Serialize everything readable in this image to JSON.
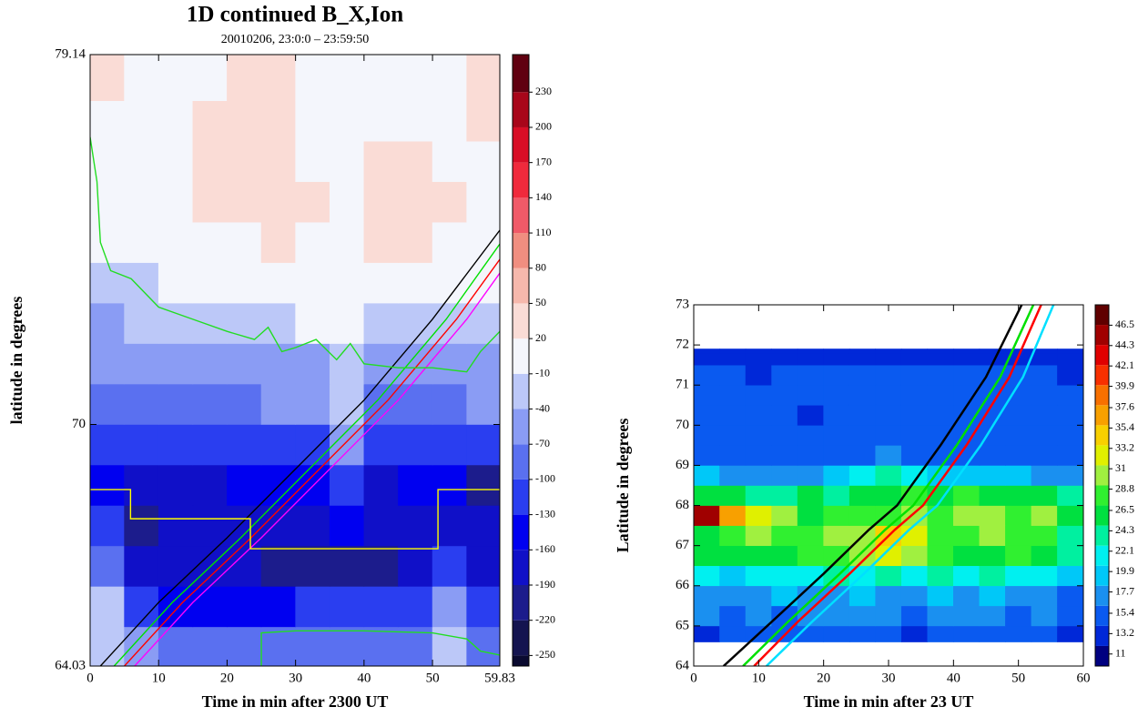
{
  "chart_data": [
    {
      "type": "contour",
      "title": "1D continued B_X,Ion",
      "subtitle": "20010206, 23:0:0 – 23:59:50",
      "xlabel": "Time in min after 2300 UT",
      "ylabel": "latitude in degrees",
      "xlim": [
        0,
        59.83
      ],
      "ylim": [
        64.03,
        79.14
      ],
      "xticks": [
        0,
        10,
        20,
        30,
        40,
        50,
        59.83
      ],
      "yticks": [
        64.03,
        70,
        79.14
      ],
      "x": [
        2.5,
        7.5,
        12.5,
        17.5,
        22.5,
        27.5,
        32.5,
        37.5,
        42.5,
        47.5,
        52.5,
        57.5
      ],
      "y": [
        64.5,
        65.5,
        66.5,
        67.5,
        68.5,
        69.5,
        70.5,
        71.5,
        72.5,
        73.5,
        74.5,
        75.5,
        76.5,
        77.5,
        78.5
      ],
      "z": [
        [
          -30,
          -60,
          -90,
          -100,
          -90,
          -80,
          -80,
          -80,
          -80,
          -80,
          -40,
          -100
        ],
        [
          -40,
          -120,
          -150,
          -160,
          -150,
          -140,
          -130,
          -130,
          -120,
          -120,
          -60,
          -130
        ],
        [
          -80,
          -170,
          -190,
          -190,
          -190,
          -200,
          -210,
          -210,
          -200,
          -190,
          -120,
          -180
        ],
        [
          -130,
          -200,
          -180,
          -170,
          -170,
          -180,
          -190,
          -140,
          -190,
          -180,
          -170,
          -180
        ],
        [
          -140,
          -190,
          -180,
          -170,
          -160,
          -160,
          -150,
          -120,
          -170,
          -160,
          -150,
          -200
        ],
        [
          -110,
          -130,
          -120,
          -110,
          -110,
          -105,
          -105,
          -70,
          -110,
          -110,
          -105,
          -110
        ],
        [
          -90,
          -90,
          -80,
          -80,
          -75,
          -70,
          -70,
          -30,
          -80,
          -80,
          -75,
          -70
        ],
        [
          -70,
          -60,
          -60,
          -55,
          -50,
          -45,
          -45,
          -20,
          -50,
          -55,
          -50,
          -45
        ],
        [
          -50,
          -40,
          -30,
          -25,
          -20,
          -15,
          -10,
          -5,
          -15,
          -20,
          -20,
          -15
        ],
        [
          -30,
          -20,
          -10,
          -5,
          0,
          5,
          5,
          0,
          5,
          10,
          -5,
          0
        ],
        [
          -10,
          -5,
          0,
          10,
          15,
          20,
          15,
          10,
          25,
          25,
          15,
          15
        ],
        [
          0,
          0,
          0,
          20,
          25,
          30,
          20,
          10,
          25,
          30,
          20,
          10
        ],
        [
          5,
          0,
          5,
          25,
          30,
          25,
          15,
          5,
          20,
          25,
          10,
          15
        ],
        [
          10,
          5,
          10,
          25,
          30,
          20,
          10,
          0,
          5,
          15,
          10,
          20
        ],
        [
          25,
          15,
          10,
          15,
          25,
          20,
          10,
          5,
          5,
          10,
          15,
          25
        ]
      ],
      "colorbar": {
        "lim": [
          -259,
          262
        ],
        "ticks": [
          -250,
          -220,
          -190,
          -160,
          -130,
          -100,
          -70,
          -40,
          -10,
          20,
          50,
          80,
          110,
          140,
          170,
          200,
          230
        ],
        "colors": [
          "#0a0a30",
          "#141450",
          "#1c1c8c",
          "#1010c8",
          "#0000f0",
          "#2a3ef0",
          "#5a70f0",
          "#8a9cf4",
          "#bcc8f8",
          "#f4f6fc",
          "#fadcd6",
          "#f6b8ac",
          "#f08e80",
          "#f05a68",
          "#f02a3c",
          "#d80e26",
          "#a8061a",
          "#600010"
        ]
      },
      "lines": [
        {
          "color": "#000000",
          "x": [
            1.5,
            10,
            20,
            30,
            40,
            50,
            59.83
          ],
          "y": [
            64.03,
            65.6,
            67.2,
            68.9,
            70.6,
            72.6,
            74.8
          ]
        },
        {
          "color": "#00e000",
          "x": [
            3.5,
            12,
            22,
            32,
            42,
            52,
            59.83
          ],
          "y": [
            64.03,
            65.6,
            67.2,
            68.9,
            70.6,
            72.6,
            74.46
          ]
        },
        {
          "color": "#ff0000",
          "x": [
            5,
            13.5,
            23.5,
            33.5,
            43.5,
            53.5,
            59.83
          ],
          "y": [
            64.03,
            65.6,
            67.2,
            68.9,
            70.6,
            72.6,
            74.08
          ]
        },
        {
          "color": "#ff00ff",
          "x": [
            6.5,
            15,
            25,
            35,
            45,
            55,
            59.83
          ],
          "y": [
            64.03,
            65.6,
            67.2,
            68.9,
            70.6,
            72.6,
            73.74
          ]
        },
        {
          "color": "#ffff00",
          "x": [
            0,
            5.9,
            5.9,
            23.4,
            23.4,
            50.8,
            50.8,
            59.83
          ],
          "y": [
            68.39,
            68.39,
            67.67,
            67.67,
            66.93,
            66.93,
            68.39,
            68.39
          ]
        },
        {
          "color": "#22dd22",
          "x": [
            0,
            1,
            1.5,
            3,
            6,
            10,
            15,
            20,
            24,
            26,
            28,
            30,
            33,
            36,
            38,
            40,
            45,
            50,
            55,
            57,
            59.83
          ],
          "y": [
            77.1,
            76,
            74.5,
            73.8,
            73.6,
            72.9,
            72.6,
            72.3,
            72.1,
            72.4,
            71.8,
            71.9,
            72.1,
            71.6,
            72,
            71.5,
            71.4,
            71.4,
            71.3,
            71.8,
            72.3
          ]
        },
        {
          "color": "#22dd22",
          "x": [
            25,
            25,
            30,
            40,
            50,
            55,
            57,
            59.83
          ],
          "y": [
            64.03,
            64.85,
            64.9,
            64.9,
            64.85,
            64.7,
            64.4,
            64.3
          ]
        }
      ]
    },
    {
      "type": "heatmap",
      "xlabel": "Time in min after 23 UT",
      "ylabel": "Latitude in degrees",
      "xlim": [
        0,
        60
      ],
      "ylim": [
        64,
        73
      ],
      "xticks": [
        0,
        10,
        20,
        30,
        40,
        50,
        60
      ],
      "yticks": [
        64,
        65,
        66,
        67,
        68,
        69,
        70,
        71,
        72,
        73
      ],
      "x_edges": [
        0,
        4,
        8,
        12,
        16,
        20,
        24,
        28,
        32,
        36,
        40,
        44,
        48,
        52,
        56,
        60
      ],
      "y_edges": [
        64.6,
        65,
        65.5,
        66,
        66.5,
        67,
        67.5,
        68,
        68.5,
        69,
        69.5,
        70,
        70.5,
        71,
        71.5,
        71.8,
        71.9
      ],
      "z": [
        [
          14,
          15,
          15,
          16,
          15,
          15,
          16,
          15,
          14,
          15,
          16,
          15,
          15,
          16,
          14
        ],
        [
          17,
          16,
          17,
          16,
          17,
          18,
          17,
          17,
          16,
          17,
          18,
          17,
          16,
          17,
          15
        ],
        [
          18,
          17,
          18,
          19,
          18,
          17,
          19,
          18,
          18,
          19,
          18,
          19,
          18,
          17,
          16
        ],
        [
          21,
          20,
          22,
          21,
          22,
          23,
          22,
          23,
          22,
          24,
          22,
          23,
          22,
          21,
          19
        ],
        [
          25,
          26,
          27,
          26,
          28,
          29,
          30,
          33,
          31,
          28,
          27,
          26,
          28,
          27,
          23
        ],
        [
          27,
          28,
          30,
          29,
          28,
          30,
          31,
          34,
          32,
          29,
          28,
          30,
          29,
          28,
          24
        ],
        [
          45,
          37,
          33,
          31,
          27,
          28,
          28,
          29,
          30,
          29,
          31,
          30,
          29,
          30,
          25
        ],
        [
          26,
          25,
          24,
          24,
          25,
          24,
          25,
          27,
          28,
          27,
          28,
          27,
          26,
          27,
          23
        ],
        [
          19,
          18,
          18,
          18,
          18,
          19,
          21,
          24,
          22,
          20,
          19,
          20,
          19,
          18,
          17
        ],
        [
          16,
          15,
          15,
          15,
          15,
          15,
          16,
          17,
          16,
          16,
          15,
          16,
          15,
          15,
          15
        ],
        [
          15,
          15,
          15,
          15,
          15,
          15,
          15,
          15,
          15,
          15,
          15,
          15,
          15,
          15,
          15
        ],
        [
          15,
          15,
          15,
          15,
          13,
          15,
          15,
          15,
          15,
          15,
          15,
          15,
          15,
          15,
          15
        ],
        [
          15,
          15,
          15,
          15,
          15,
          15,
          15,
          15,
          15,
          15,
          15,
          15,
          15,
          15,
          15
        ],
        [
          15,
          15,
          13,
          15,
          15,
          15,
          15,
          15,
          15,
          15,
          15,
          15,
          15,
          15,
          14
        ],
        [
          14,
          14,
          13,
          14,
          14,
          14,
          14,
          14,
          14,
          14,
          14,
          14,
          14,
          14,
          13
        ],
        [
          12,
          12,
          12,
          12,
          12,
          12,
          12,
          12,
          12,
          12,
          12,
          12,
          12,
          12,
          12
        ]
      ],
      "colorbar": {
        "lim": [
          9.7,
          48.7
        ],
        "ticks": [
          11,
          13.2,
          15.4,
          17.7,
          19.9,
          22.1,
          24.3,
          26.5,
          28.8,
          31,
          33.2,
          35.4,
          37.6,
          39.9,
          42.1,
          44.3,
          46.5
        ],
        "colors": [
          "#000080",
          "#0028d8",
          "#0a5af0",
          "#1a90f0",
          "#00c8f8",
          "#00f0f0",
          "#00f0a0",
          "#00e040",
          "#30f030",
          "#a0f040",
          "#e0f000",
          "#f8d000",
          "#f8a000",
          "#f87000",
          "#f83000",
          "#e00000",
          "#a00000",
          "#600000"
        ]
      },
      "lines": [
        {
          "color": "#000000",
          "x": [
            4.6,
            12,
            20,
            27,
            31.3,
            38,
            45,
            50.5
          ],
          "y": [
            64,
            65.1,
            66.3,
            67.4,
            68,
            69.5,
            71.2,
            73
          ]
        },
        {
          "color": "#00e000",
          "x": [
            7.6,
            14.5,
            22.5,
            29.5,
            33.8,
            40.5,
            47.2,
            52.3
          ],
          "y": [
            64,
            65.1,
            66.3,
            67.4,
            68,
            69.5,
            71.2,
            73
          ]
        },
        {
          "color": "#ff0000",
          "x": [
            9.3,
            16,
            24,
            31,
            35.3,
            42,
            48.6,
            53.5
          ],
          "y": [
            64,
            65.1,
            66.3,
            67.4,
            68,
            69.5,
            71.2,
            73
          ]
        },
        {
          "color": "#00e0ff",
          "x": [
            11.2,
            18.2,
            26.2,
            33.2,
            37.5,
            44.2,
            50.7,
            55.4
          ],
          "y": [
            64,
            65.1,
            66.3,
            67.4,
            68,
            69.5,
            71.2,
            73
          ]
        }
      ]
    }
  ]
}
